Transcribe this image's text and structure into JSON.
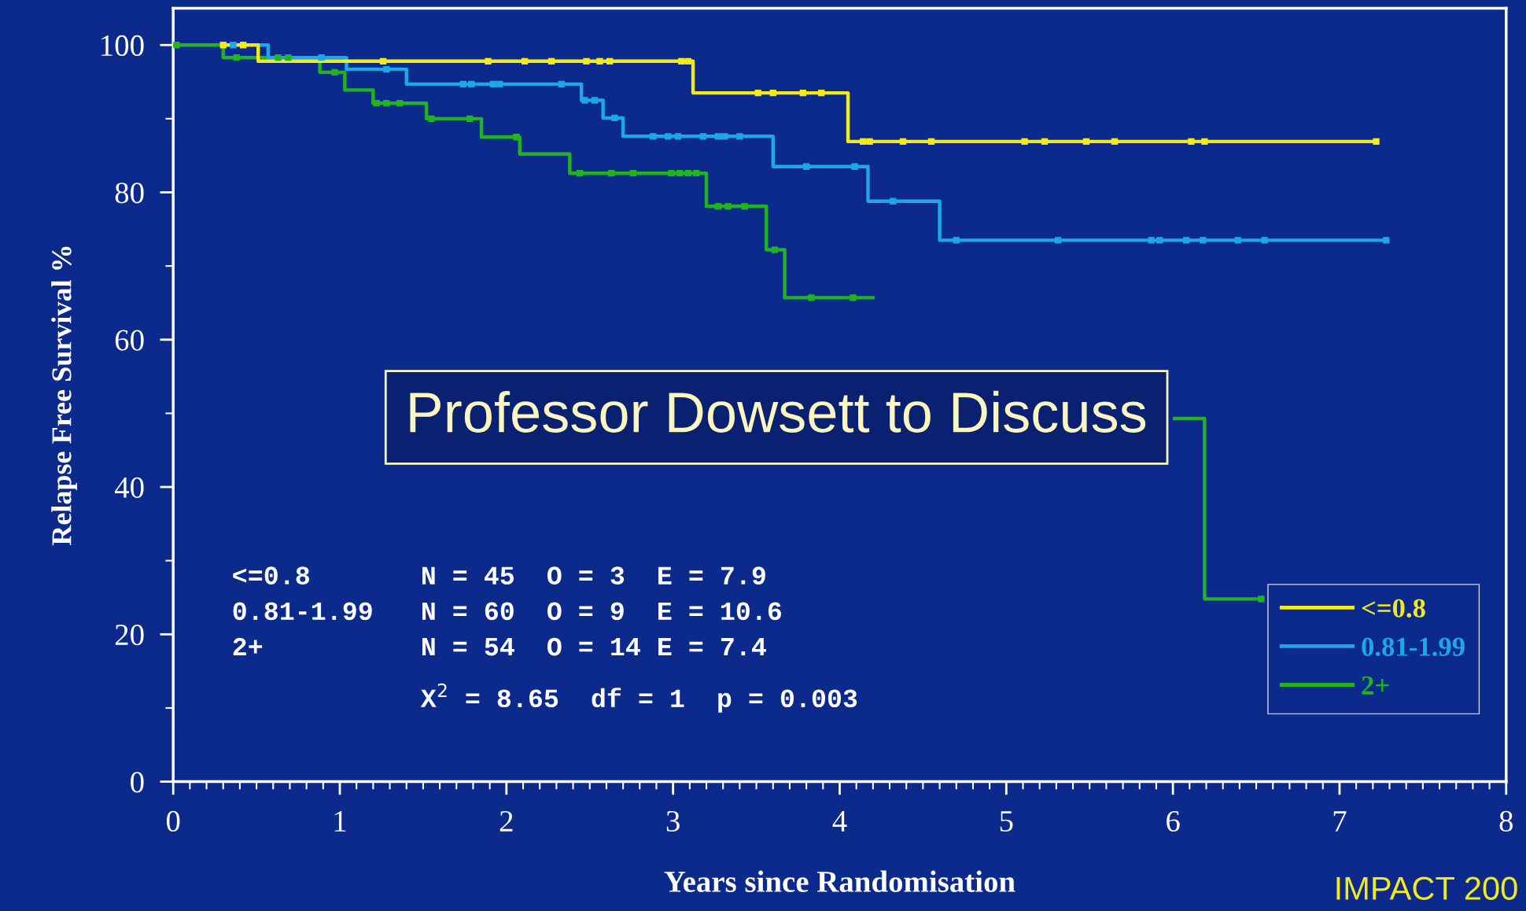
{
  "chart_data": {
    "type": "step",
    "xlabel": "Years since Randomisation",
    "ylabel": "Relapse Free Survival %",
    "xlim": [
      0,
      8
    ],
    "ylim": [
      0,
      105
    ],
    "xticks": [
      0,
      1,
      2,
      3,
      4,
      5,
      6,
      7,
      8,
      {
        "value": 0.1,
        "label": null
      },
      {
        "value": 0.2,
        "label": null
      },
      {
        "value": 0.3,
        "label": null
      },
      {
        "value": 0.4,
        "label": null
      },
      {
        "value": 0.5,
        "label": null
      },
      {
        "value": 0.6,
        "label": null
      },
      {
        "value": 0.7,
        "label": null
      },
      {
        "value": 0.8,
        "label": null
      },
      {
        "value": 0.9,
        "label": null
      },
      {
        "value": 1.1,
        "label": null
      },
      {
        "value": 1.2,
        "label": null
      },
      {
        "value": 1.3,
        "label": null
      },
      {
        "value": 1.4,
        "label": null
      },
      {
        "value": 1.5,
        "label": null
      },
      {
        "value": 1.6,
        "label": null
      },
      {
        "value": 1.7,
        "label": null
      },
      {
        "value": 1.8,
        "label": null
      },
      {
        "value": 1.9,
        "label": null
      },
      {
        "value": 2.1,
        "label": null
      },
      {
        "value": 2.2,
        "label": null
      },
      {
        "value": 2.3,
        "label": null
      },
      {
        "value": 2.4,
        "label": null
      },
      {
        "value": 2.5,
        "label": null
      },
      {
        "value": 2.6,
        "label": null
      },
      {
        "value": 2.7,
        "label": null
      },
      {
        "value": 2.8,
        "label": null
      },
      {
        "value": 2.9,
        "label": null
      },
      {
        "value": 3.1,
        "label": null
      },
      {
        "value": 3.2,
        "label": null
      },
      {
        "value": 3.3,
        "label": null
      },
      {
        "value": 3.4,
        "label": null
      },
      {
        "value": 3.5,
        "label": null
      },
      {
        "value": 3.6,
        "label": null
      },
      {
        "value": 3.7,
        "label": null
      },
      {
        "value": 3.8,
        "label": null
      },
      {
        "value": 3.9,
        "label": null
      },
      {
        "value": 4.1,
        "label": null
      },
      {
        "value": 4.2,
        "label": null
      },
      {
        "value": 4.3,
        "label": null
      },
      {
        "value": 4.4,
        "label": null
      },
      {
        "value": 4.5,
        "label": null
      },
      {
        "value": 4.6,
        "label": null
      },
      {
        "value": 4.7,
        "label": null
      },
      {
        "value": 4.8,
        "label": null
      },
      {
        "value": 4.9,
        "label": null
      },
      {
        "value": 5.1,
        "label": null
      },
      {
        "value": 5.2,
        "label": null
      },
      {
        "value": 5.3,
        "label": null
      },
      {
        "value": 5.4,
        "label": null
      },
      {
        "value": 5.5,
        "label": null
      },
      {
        "value": 5.6,
        "label": null
      },
      {
        "value": 5.7,
        "label": null
      },
      {
        "value": 5.8,
        "label": null
      },
      {
        "value": 5.9,
        "label": null
      },
      {
        "value": 6.1,
        "label": null
      },
      {
        "value": 6.2,
        "label": null
      },
      {
        "value": 6.3,
        "label": null
      },
      {
        "value": 6.4,
        "label": null
      },
      {
        "value": 6.5,
        "label": null
      },
      {
        "value": 6.6,
        "label": null
      },
      {
        "value": 6.7,
        "label": null
      },
      {
        "value": 6.8,
        "label": null
      },
      {
        "value": 6.9,
        "label": null
      },
      {
        "value": 7.1,
        "label": null
      },
      {
        "value": 7.2,
        "label": null
      },
      {
        "value": 7.3,
        "label": null
      },
      {
        "value": 7.4,
        "label": null
      },
      {
        "value": 7.5,
        "label": null
      },
      {
        "value": 7.6,
        "label": null
      },
      {
        "value": 7.7,
        "label": null
      },
      {
        "value": 7.8,
        "label": null
      },
      {
        "value": 7.9,
        "label": null
      }
    ],
    "yticks": [
      0,
      20,
      40,
      60,
      80,
      100,
      {
        "value": 10,
        "label": null
      },
      {
        "value": 30,
        "label": null
      },
      {
        "value": 50,
        "label": null
      },
      {
        "value": 70,
        "label": null
      },
      {
        "value": 90,
        "label": null
      }
    ],
    "grid": false,
    "legend": "bottom right",
    "line_style": "solid",
    "series": [
      {
        "name": "<=0.8",
        "color": "#f2ea1c",
        "x": [
          0.3,
          0.51,
          3.12,
          4.05,
          7.22
        ],
        "values": [
          100,
          97.8,
          93.5,
          86.9,
          86.9
        ]
      },
      {
        "name": "0.81-1.99",
        "color": "#1ca8e8",
        "x": [
          0.51,
          0.57,
          1.04,
          1.4,
          2.45,
          2.58,
          2.7,
          3.6,
          4.17,
          4.6,
          7.28
        ],
        "values": [
          100,
          98.3,
          96.7,
          94.7,
          92.5,
          90.1,
          87.6,
          83.5,
          78.8,
          73.5,
          73.5
        ]
      },
      {
        "name": "2+",
        "color": "#22b322",
        "x": [
          0,
          0.3,
          0.88,
          1.03,
          1.2,
          1.52,
          1.85,
          2.08,
          2.38,
          3.2,
          3.56,
          3.67,
          4.2,
          6.01,
          6.19,
          6.53
        ],
        "values": [
          100,
          98.3,
          96.3,
          93.9,
          92.1,
          90.0,
          87.5,
          85.2,
          82.6,
          78.1,
          72.2,
          65.7,
          null,
          49.3,
          24.8,
          24.8
        ]
      },
      {
        "type": "scatter",
        "marker": "square",
        "color": "#f2ea1c",
        "x": [
          0.3,
          0.42,
          1.26,
          1.89,
          2.11,
          2.27,
          2.48,
          2.56,
          2.62,
          3.05,
          3.09,
          3.51,
          3.6,
          3.78,
          3.89,
          4.14,
          4.18,
          4.38,
          4.55,
          5.11,
          5.23,
          5.48,
          5.65,
          6.11,
          6.19,
          7.22
        ],
        "values": [
          100,
          100,
          97.8,
          97.8,
          97.8,
          97.8,
          97.8,
          97.8,
          97.8,
          97.8,
          97.8,
          93.5,
          93.5,
          93.5,
          93.5,
          86.9,
          86.9,
          86.9,
          86.9,
          86.9,
          86.9,
          86.9,
          86.9,
          86.9,
          86.9,
          86.9
        ]
      },
      {
        "type": "scatter",
        "marker": "square",
        "color": "#1ca8e8",
        "x": [
          0.36,
          0.89,
          1.28,
          1.74,
          1.79,
          1.92,
          1.96,
          2.33,
          2.47,
          2.53,
          2.65,
          2.88,
          2.97,
          3.03,
          3.18,
          3.27,
          3.31,
          3.4,
          3.8,
          4.09,
          4.32,
          4.7,
          5.31,
          5.87,
          5.92,
          6.08,
          6.18,
          6.39,
          6.55,
          7.28
        ],
        "values": [
          100,
          98.3,
          96.7,
          94.7,
          94.7,
          94.7,
          94.7,
          94.7,
          92.5,
          92.5,
          90.1,
          87.6,
          87.6,
          87.6,
          87.6,
          87.6,
          87.6,
          87.6,
          83.5,
          83.5,
          78.8,
          73.5,
          73.5,
          73.5,
          73.5,
          73.5,
          73.5,
          73.5,
          73.5,
          73.5
        ]
      },
      {
        "type": "scatter",
        "marker": "square",
        "color": "#22b322",
        "x": [
          0.02,
          0.38,
          0.63,
          0.69,
          0.97,
          1.22,
          1.28,
          1.36,
          1.55,
          1.78,
          2.06,
          2.44,
          2.63,
          2.76,
          2.99,
          3.04,
          3.09,
          3.14,
          3.27,
          3.33,
          3.43,
          3.61,
          3.83,
          4.08,
          6.53
        ],
        "values": [
          100,
          98.3,
          98.3,
          98.3,
          96.3,
          92.1,
          92.1,
          92.1,
          90.0,
          90.0,
          87.5,
          82.6,
          82.6,
          82.6,
          82.6,
          82.6,
          82.6,
          82.6,
          78.1,
          78.1,
          78.1,
          72.2,
          65.7,
          65.7,
          24.8
        ]
      }
    ],
    "annotations": [
      "<=0.8       N = 45  O = 3  E = 7.9",
      "0.81-1.99   N = 60  O = 9  E = 10.6",
      "2+          N = 54  O = 14 E = 7.4",
      "            X$^{2}$ = 8.65  df = 1  p = 0.003",
      "Professor Dowsett to Discuss",
      "IMPACT 200"
    ]
  }
}
